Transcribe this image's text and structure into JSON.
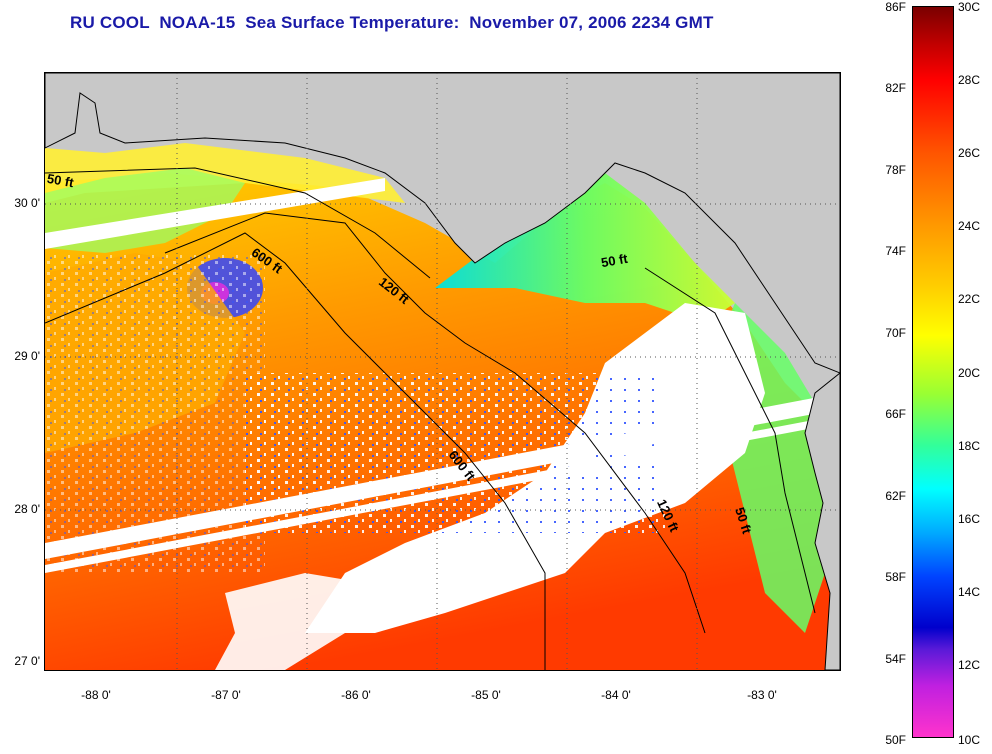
{
  "title": "RU COOL  NOAA-15  Sea Surface Temperature:  November 07, 2006 2234 GMT",
  "axes": {
    "y_ticks": [
      "30 0'",
      "29 0'",
      "28 0'",
      "27 0'"
    ],
    "x_ticks": [
      "-88 0'",
      "-87 0'",
      "-86 0'",
      "-85 0'",
      "-84 0'",
      "-83 0'"
    ]
  },
  "contours": {
    "labels": [
      "50 ft",
      "600 ft",
      "120 ft",
      "50 ft",
      "600 ft",
      "120 ft",
      "50 ft"
    ]
  },
  "colorbar": {
    "fahrenheit": [
      "86F",
      "82F",
      "78F",
      "74F",
      "70F",
      "66F",
      "62F",
      "58F",
      "54F",
      "50F"
    ],
    "celsius": [
      "30C",
      "28C",
      "26C",
      "24C",
      "22C",
      "20C",
      "18C",
      "16C",
      "14C",
      "12C",
      "10C"
    ]
  },
  "colors": {
    "title": "#1a1aa8",
    "land": "#c8c8c8",
    "no_data": "#ffffff"
  }
}
